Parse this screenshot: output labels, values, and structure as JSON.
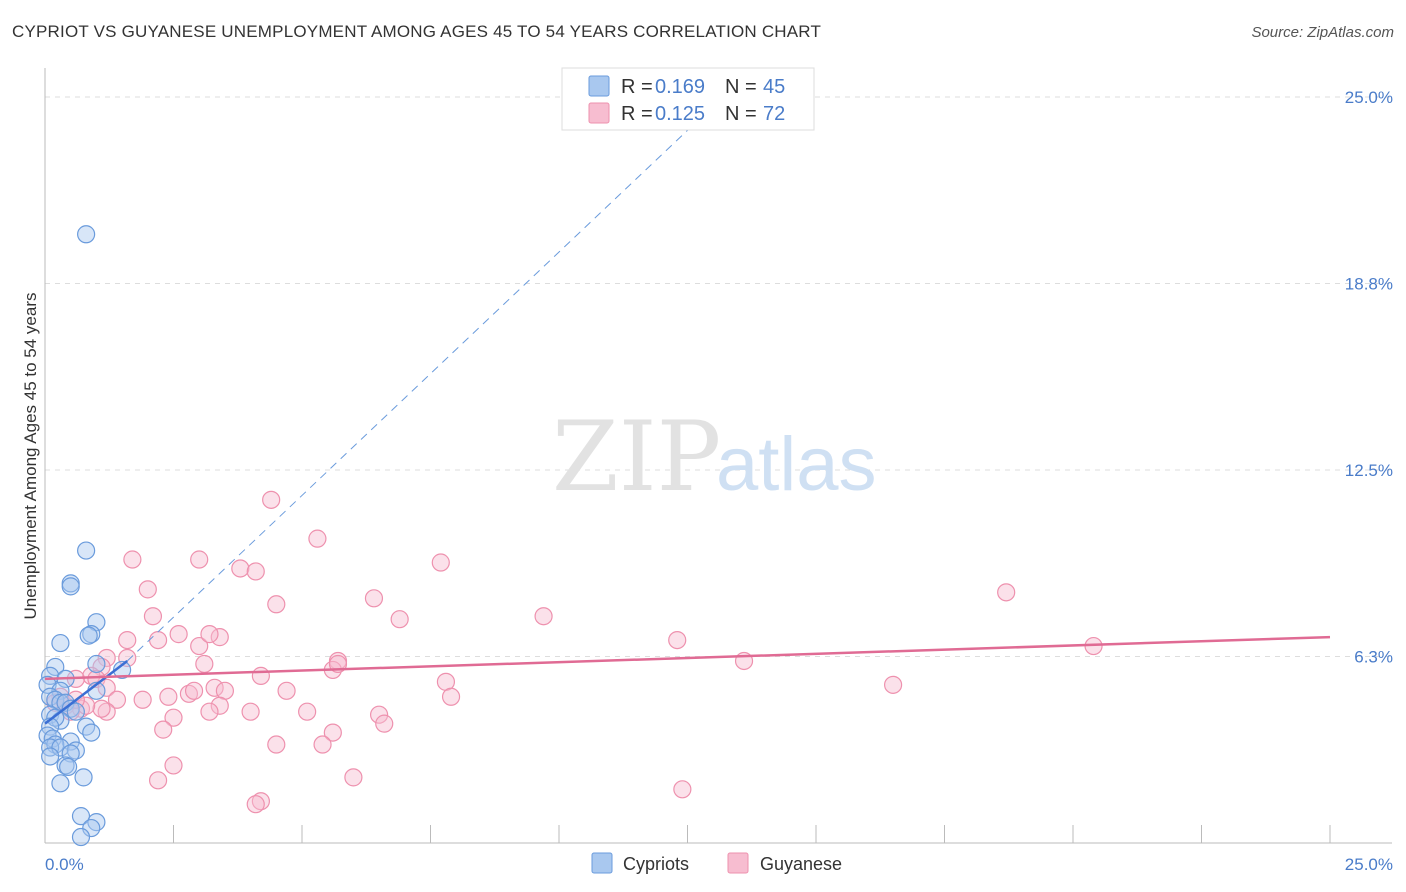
{
  "title": "CYPRIOT VS GUYANESE UNEMPLOYMENT AMONG AGES 45 TO 54 YEARS CORRELATION CHART",
  "source": "Source: ZipAtlas.com",
  "watermark": {
    "zip": "ZIP",
    "atlas": "atlas"
  },
  "colors": {
    "blue_fill": "#a9c8ef",
    "blue_stroke": "#6a9bdc",
    "blue_line": "#3b6fd4",
    "pink_fill": "#f7bdd0",
    "pink_stroke": "#ee91ae",
    "pink_line": "#e06b94",
    "grid": "#dddddd",
    "axis": "#bbbbbb",
    "tick_text": "#4a7cc9"
  },
  "legend_top": [
    {
      "r_label": "R = ",
      "r_value": "0.169",
      "n_label": "N = ",
      "n_value": "45",
      "series": "blue"
    },
    {
      "r_label": "R = ",
      "r_value": "0.125",
      "n_label": "N = ",
      "n_value": "72",
      "series": "pink"
    }
  ],
  "legend_bottom": [
    {
      "label": "Cypriots",
      "series": "blue"
    },
    {
      "label": "Guyanese",
      "series": "pink"
    }
  ],
  "chart_data": {
    "type": "scatter",
    "title": "CYPRIOT VS GUYANESE UNEMPLOYMENT AMONG AGES 45 TO 54 YEARS CORRELATION CHART",
    "xlabel": "",
    "ylabel": "Unemployment Among Ages 45 to 54 years",
    "xlim": [
      0,
      25
    ],
    "ylim": [
      0,
      25
    ],
    "x_tick_labels": [
      {
        "value": 0,
        "label": "0.0%"
      },
      {
        "value": 25,
        "label": "25.0%"
      }
    ],
    "y_tick_labels": [
      {
        "value": 6.25,
        "label": "6.3%"
      },
      {
        "value": 12.5,
        "label": "12.5%"
      },
      {
        "value": 18.75,
        "label": "18.8%"
      },
      {
        "value": 25,
        "label": "25.0%"
      }
    ],
    "grid": true,
    "series": [
      {
        "name": "Cypriots",
        "color": "blue",
        "trend": {
          "solid": [
            [
              0,
              4.0
            ],
            [
              1.6,
              6.1
            ]
          ],
          "dashed": [
            [
              1.6,
              6.1
            ],
            [
              13.0,
              24.7
            ]
          ]
        },
        "points": [
          [
            0.8,
            20.4
          ],
          [
            0.8,
            9.8
          ],
          [
            0.5,
            8.7
          ],
          [
            0.5,
            8.6
          ],
          [
            1.0,
            7.4
          ],
          [
            0.9,
            7.0
          ],
          [
            0.85,
            6.95
          ],
          [
            0.3,
            6.7
          ],
          [
            1.0,
            6.0
          ],
          [
            1.5,
            5.8
          ],
          [
            0.2,
            5.9
          ],
          [
            0.1,
            5.6
          ],
          [
            0.4,
            5.5
          ],
          [
            0.05,
            5.3
          ],
          [
            0.3,
            5.1
          ],
          [
            1.0,
            5.1
          ],
          [
            0.1,
            4.9
          ],
          [
            0.2,
            4.8
          ],
          [
            0.3,
            4.7
          ],
          [
            0.4,
            4.7
          ],
          [
            0.5,
            4.5
          ],
          [
            0.6,
            4.4
          ],
          [
            0.1,
            4.3
          ],
          [
            0.3,
            4.1
          ],
          [
            0.2,
            4.2
          ],
          [
            0.1,
            3.9
          ],
          [
            0.8,
            3.9
          ],
          [
            0.9,
            3.7
          ],
          [
            0.05,
            3.6
          ],
          [
            0.15,
            3.5
          ],
          [
            0.5,
            3.4
          ],
          [
            0.2,
            3.3
          ],
          [
            0.1,
            3.2
          ],
          [
            0.3,
            3.2
          ],
          [
            0.6,
            3.1
          ],
          [
            0.5,
            3.0
          ],
          [
            0.1,
            2.9
          ],
          [
            0.4,
            2.6
          ],
          [
            0.45,
            2.55
          ],
          [
            0.75,
            2.2
          ],
          [
            0.3,
            2.0
          ],
          [
            0.7,
            0.9
          ],
          [
            1.0,
            0.7
          ],
          [
            0.9,
            0.5
          ],
          [
            0.7,
            0.2
          ]
        ]
      },
      {
        "name": "Guyanese",
        "color": "pink",
        "trend": {
          "solid": [
            [
              0,
              5.5
            ],
            [
              25,
              6.9
            ]
          ]
        },
        "points": [
          [
            4.4,
            11.5
          ],
          [
            5.3,
            10.2
          ],
          [
            1.7,
            9.5
          ],
          [
            3.0,
            9.5
          ],
          [
            7.7,
            9.4
          ],
          [
            3.8,
            9.2
          ],
          [
            4.1,
            9.1
          ],
          [
            2.0,
            8.5
          ],
          [
            6.4,
            8.2
          ],
          [
            18.7,
            8.4
          ],
          [
            4.5,
            8.0
          ],
          [
            2.1,
            7.6
          ],
          [
            6.9,
            7.5
          ],
          [
            9.7,
            7.6
          ],
          [
            2.2,
            6.8
          ],
          [
            1.6,
            6.8
          ],
          [
            2.6,
            7.0
          ],
          [
            3.4,
            6.9
          ],
          [
            12.3,
            6.8
          ],
          [
            3.0,
            6.6
          ],
          [
            20.4,
            6.6
          ],
          [
            1.2,
            6.2
          ],
          [
            1.6,
            6.2
          ],
          [
            5.7,
            6.1
          ],
          [
            13.6,
            6.1
          ],
          [
            1.1,
            5.9
          ],
          [
            3.1,
            6.0
          ],
          [
            5.6,
            5.8
          ],
          [
            4.2,
            5.6
          ],
          [
            0.9,
            5.6
          ],
          [
            0.6,
            5.5
          ],
          [
            1.0,
            5.5
          ],
          [
            7.8,
            5.4
          ],
          [
            16.5,
            5.3
          ],
          [
            3.3,
            5.2
          ],
          [
            3.5,
            5.1
          ],
          [
            1.2,
            5.2
          ],
          [
            4.7,
            5.1
          ],
          [
            2.8,
            5.0
          ],
          [
            2.4,
            4.9
          ],
          [
            7.9,
            4.9
          ],
          [
            1.9,
            4.8
          ],
          [
            1.4,
            4.8
          ],
          [
            0.3,
            4.9
          ],
          [
            0.7,
            4.5
          ],
          [
            0.4,
            4.6
          ],
          [
            3.4,
            4.6
          ],
          [
            3.2,
            4.4
          ],
          [
            4.0,
            4.4
          ],
          [
            5.1,
            4.4
          ],
          [
            6.5,
            4.3
          ],
          [
            2.5,
            4.2
          ],
          [
            1.2,
            4.4
          ],
          [
            6.6,
            4.0
          ],
          [
            2.3,
            3.8
          ],
          [
            5.6,
            3.7
          ],
          [
            4.5,
            3.3
          ],
          [
            5.4,
            3.3
          ],
          [
            2.5,
            2.6
          ],
          [
            2.2,
            2.1
          ],
          [
            6.0,
            2.2
          ],
          [
            12.4,
            1.8
          ],
          [
            4.2,
            1.4
          ],
          [
            4.1,
            1.3
          ],
          [
            0.2,
            4.7
          ],
          [
            0.5,
            4.4
          ],
          [
            1.1,
            4.5
          ],
          [
            0.8,
            4.6
          ],
          [
            2.9,
            5.1
          ],
          [
            5.7,
            6.0
          ],
          [
            3.2,
            7.0
          ],
          [
            0.6,
            4.8
          ]
        ]
      }
    ]
  }
}
